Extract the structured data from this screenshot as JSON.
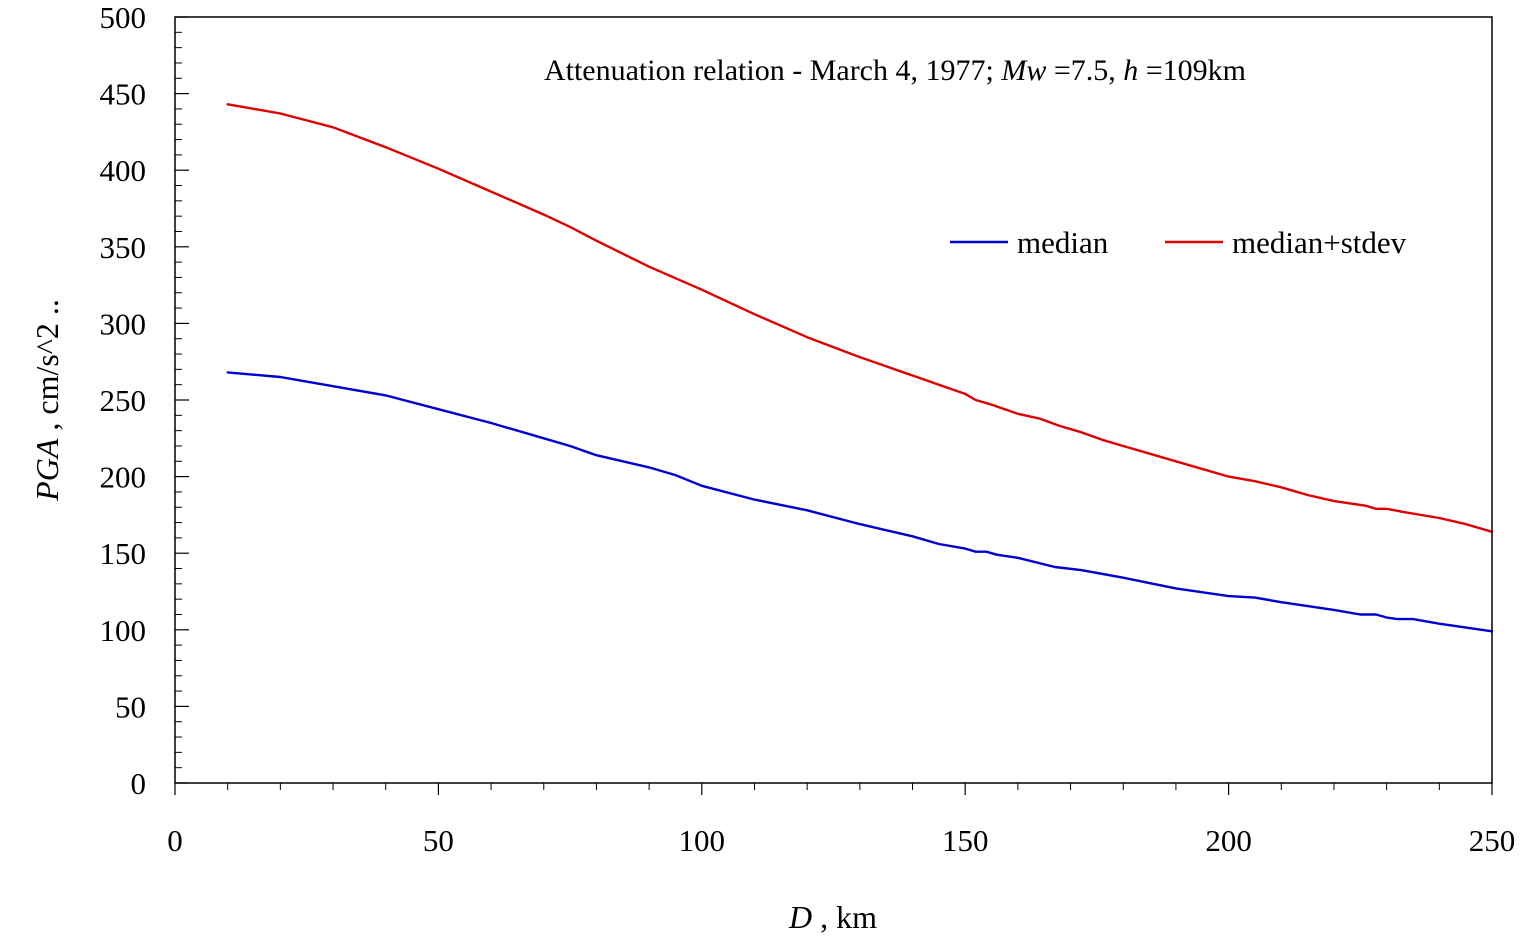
{
  "chart_data": {
    "type": "line",
    "title": {
      "prefix": "Attenuation relation - March 4, 1977; ",
      "mw_symbol": "Mw",
      "mw_value": " =7.5, ",
      "h_symbol": "h",
      "h_value": " =109km"
    },
    "xlabel": {
      "symbol": "D",
      "unit": " , km"
    },
    "ylabel": {
      "symbol": "PGA",
      "unit": " , cm/s^2 .."
    },
    "xlim": [
      0,
      250
    ],
    "ylim": [
      0,
      500
    ],
    "x_ticks": [
      0,
      50,
      100,
      150,
      200,
      250
    ],
    "y_ticks": [
      0,
      50,
      100,
      150,
      200,
      250,
      300,
      350,
      400,
      450,
      500
    ],
    "x_minor_step": 10,
    "y_minor_step": 10,
    "grid": false,
    "legend_position": "upper-right",
    "series": [
      {
        "name": "median",
        "color": "#0000cc",
        "points": [
          [
            10,
            268
          ],
          [
            20,
            265
          ],
          [
            30,
            259
          ],
          [
            40,
            253
          ],
          [
            50,
            244
          ],
          [
            60,
            235
          ],
          [
            70,
            225
          ],
          [
            75,
            220
          ],
          [
            80,
            214
          ],
          [
            90,
            206
          ],
          [
            95,
            201
          ],
          [
            100,
            194
          ],
          [
            110,
            185
          ],
          [
            120,
            178
          ],
          [
            130,
            169
          ],
          [
            140,
            161
          ],
          [
            145,
            156
          ],
          [
            150,
            153
          ],
          [
            152,
            151
          ],
          [
            154,
            151
          ],
          [
            156,
            149
          ],
          [
            160,
            147
          ],
          [
            167,
            141
          ],
          [
            172,
            139
          ],
          [
            180,
            134
          ],
          [
            190,
            127
          ],
          [
            200,
            122
          ],
          [
            205,
            121
          ],
          [
            210,
            118
          ],
          [
            220,
            113
          ],
          [
            225,
            110
          ],
          [
            228,
            110
          ],
          [
            230,
            108
          ],
          [
            232,
            107
          ],
          [
            235,
            107
          ],
          [
            240,
            104
          ],
          [
            250,
            99
          ]
        ]
      },
      {
        "name": "median+stdev",
        "color": "#dd0000",
        "points": [
          [
            10,
            443
          ],
          [
            20,
            437
          ],
          [
            30,
            428
          ],
          [
            40,
            415
          ],
          [
            50,
            401
          ],
          [
            60,
            386
          ],
          [
            70,
            371
          ],
          [
            75,
            363
          ],
          [
            80,
            354
          ],
          [
            90,
            337
          ],
          [
            100,
            322
          ],
          [
            110,
            306
          ],
          [
            120,
            291
          ],
          [
            130,
            278
          ],
          [
            140,
            266
          ],
          [
            145,
            260
          ],
          [
            150,
            254
          ],
          [
            152,
            250
          ],
          [
            155,
            247
          ],
          [
            160,
            241
          ],
          [
            164,
            238
          ],
          [
            168,
            233
          ],
          [
            172,
            229
          ],
          [
            176,
            224
          ],
          [
            180,
            220
          ],
          [
            190,
            210
          ],
          [
            200,
            200
          ],
          [
            205,
            197
          ],
          [
            210,
            193
          ],
          [
            215,
            188
          ],
          [
            220,
            184
          ],
          [
            226,
            181
          ],
          [
            228,
            179
          ],
          [
            230,
            179
          ],
          [
            233,
            177
          ],
          [
            240,
            173
          ],
          [
            245,
            169
          ],
          [
            250,
            164
          ]
        ]
      }
    ]
  }
}
